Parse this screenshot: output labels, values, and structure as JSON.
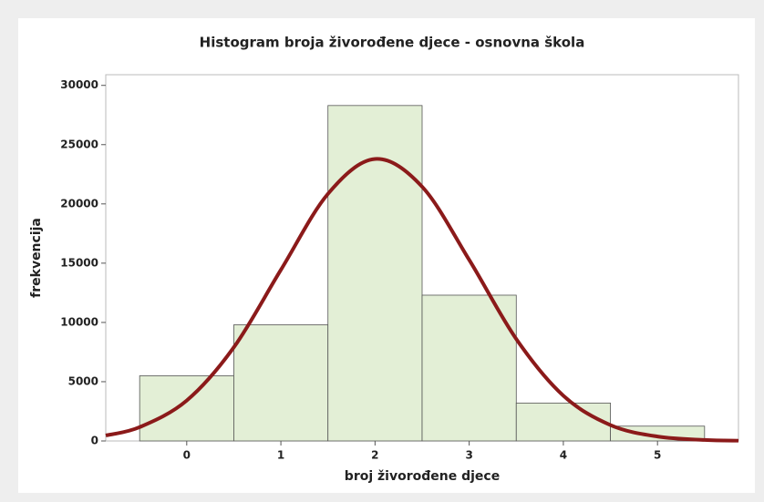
{
  "chart_data": {
    "type": "histogram",
    "title": "Histogram broja živorođene djece - osnovna škola",
    "x_label": "broj živorođene djece",
    "y_label": "frekvencija",
    "bins": [
      -0.5,
      0.5,
      1.5,
      2.5,
      3.5,
      4.5,
      5.5
    ],
    "values": [
      5500,
      9800,
      28300,
      12300,
      3200,
      1250
    ],
    "color": "#e3efd6",
    "edge_color": "#555555",
    "xlim": [
      -0.86,
      5.86
    ],
    "ylim": [
      0,
      30900
    ],
    "xticks": [
      0,
      1,
      2,
      3,
      4,
      5
    ],
    "yticks": [
      0,
      5000,
      10000,
      15000,
      20000,
      25000,
      30000
    ],
    "curve": {
      "color": "#8b1a1a",
      "x": [
        -0.86,
        -0.5,
        0,
        0.5,
        1,
        1.5,
        2,
        2.5,
        3,
        3.5,
        4,
        4.5,
        5,
        5.5,
        5.86
      ],
      "values": [
        464,
        1166,
        3413,
        7900,
        14435,
        20850,
        23790,
        21450,
        15280,
        8600,
        3820,
        1343,
        373,
        82,
        24
      ]
    }
  }
}
